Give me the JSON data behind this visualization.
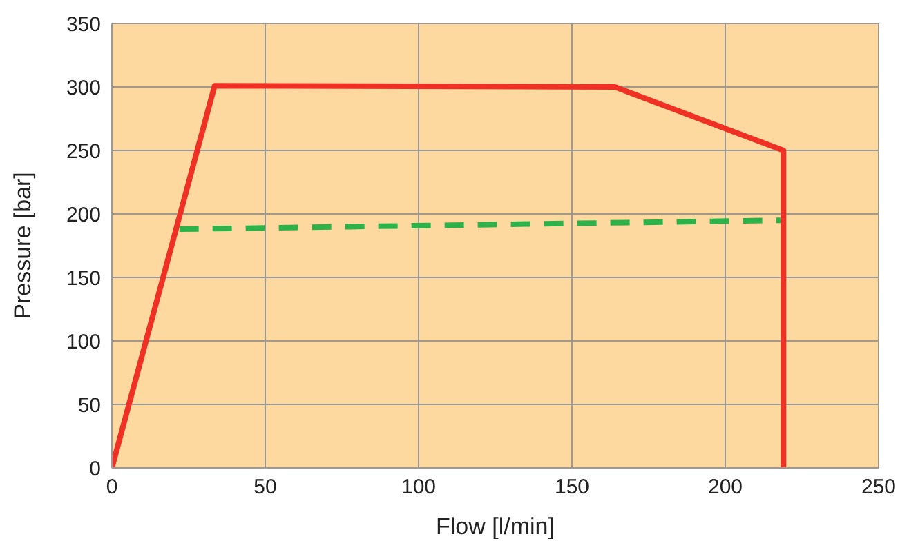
{
  "chart_data": {
    "type": "line",
    "xlabel": "Flow [l/min]",
    "ylabel": "Pressure [bar]",
    "xlim": [
      0,
      250
    ],
    "xticks": [
      0,
      50,
      100,
      150,
      200,
      250
    ],
    "ylim": [
      0,
      350
    ],
    "yticks": [
      0,
      50,
      100,
      150,
      200,
      250,
      300,
      350
    ],
    "grid": true,
    "marker": "none",
    "series": [
      {
        "color": "#ee3124",
        "line_style": "solid",
        "x": [
          0,
          33.5,
          164,
          219,
          219
        ],
        "values": [
          0,
          301,
          300,
          250,
          0
        ]
      },
      {
        "color": "#2db24a",
        "line_style": "dashed",
        "x": [
          22,
          218
        ],
        "values": [
          188,
          195
        ]
      }
    ]
  }
}
